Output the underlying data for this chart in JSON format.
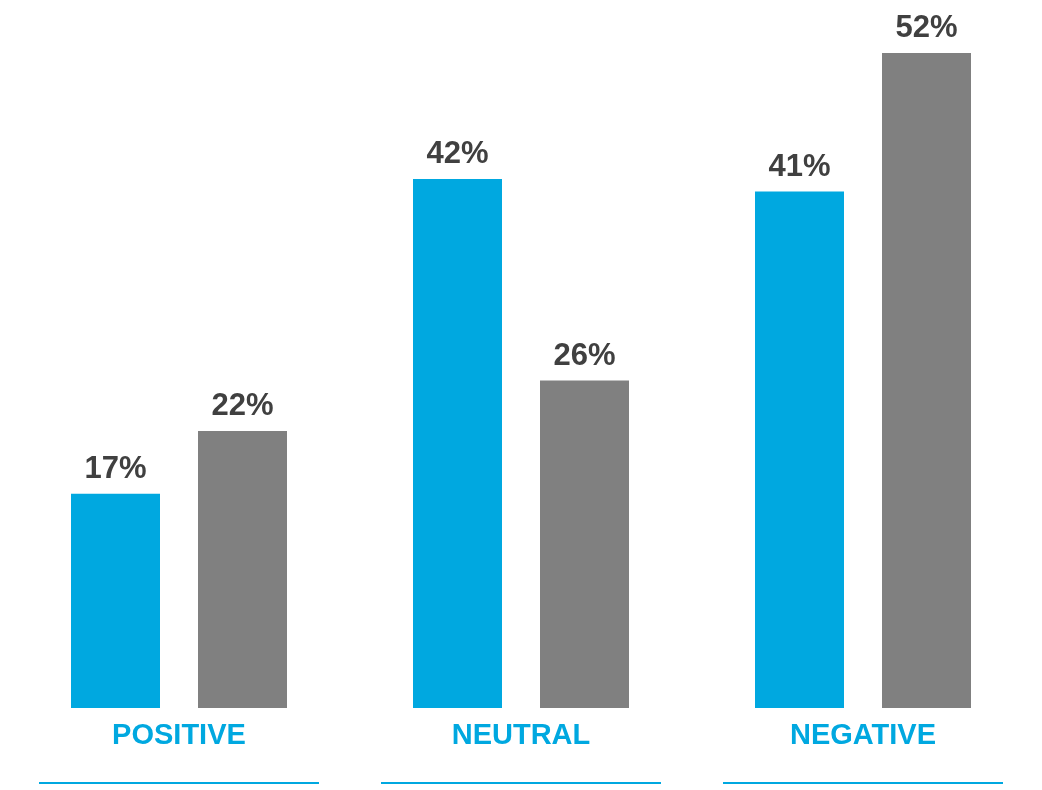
{
  "chart_data": {
    "type": "bar",
    "categories": [
      "POSITIVE",
      "NEUTRAL",
      "NEGATIVE"
    ],
    "series": [
      {
        "color": "#00a8e0",
        "values": [
          17,
          42,
          41
        ],
        "value_labels": [
          "17%",
          "42%",
          "41%"
        ]
      },
      {
        "color": "#808080",
        "values": [
          22,
          26,
          52
        ],
        "value_labels": [
          "22%",
          "26%",
          "52%"
        ]
      }
    ],
    "grid": false,
    "legend": false
  }
}
